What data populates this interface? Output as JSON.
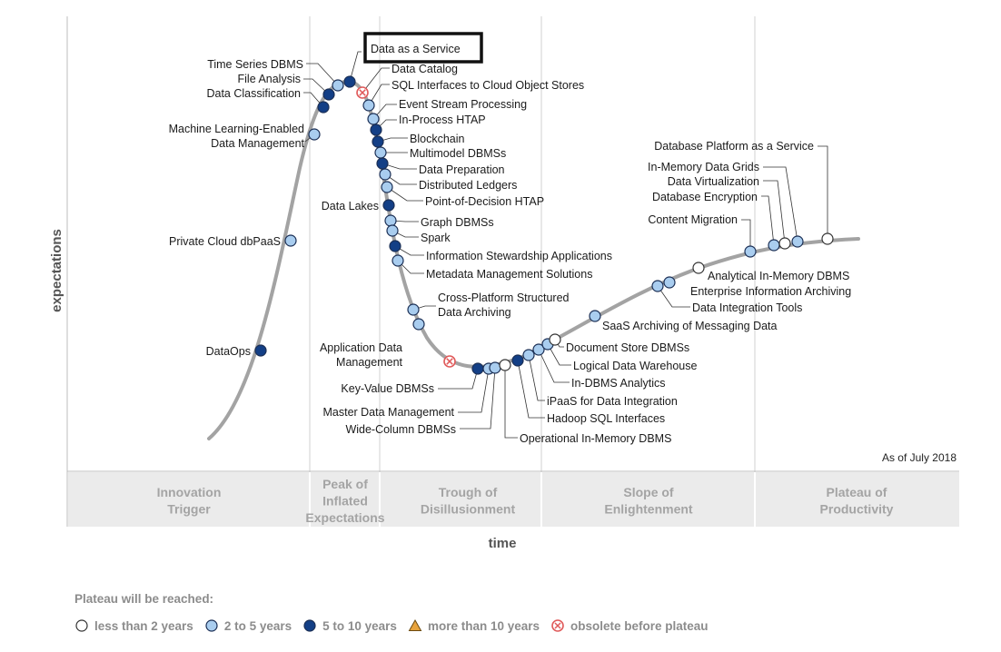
{
  "chart": {
    "x_axis_label": "time",
    "y_axis_label": "expectations",
    "as_of": "As of July 2018",
    "highlight": "Data as a Service",
    "phases": [
      {
        "id": "innovation-trigger",
        "lines": [
          "Innovation",
          "Trigger"
        ]
      },
      {
        "id": "peak",
        "lines": [
          "Peak of",
          "Inflated",
          "Expectations"
        ]
      },
      {
        "id": "trough",
        "lines": [
          "Trough of",
          "Disillusionment"
        ]
      },
      {
        "id": "slope",
        "lines": [
          "Slope of",
          "Enlightenment"
        ]
      },
      {
        "id": "plateau",
        "lines": [
          "Plateau of",
          "Productivity"
        ]
      }
    ]
  },
  "technologies": [
    {
      "name": "DataOps",
      "category": "5-10"
    },
    {
      "name": "Private Cloud dbPaaS",
      "category": "2-5"
    },
    {
      "name": "Machine Learning-Enabled Data Management",
      "category": "2-5"
    },
    {
      "name": "Data Classification",
      "category": "5-10"
    },
    {
      "name": "File Analysis",
      "category": "5-10"
    },
    {
      "name": "Time Series DBMS",
      "category": "2-5"
    },
    {
      "name": "Data as a Service",
      "category": "5-10"
    },
    {
      "name": "Data Catalog",
      "category": "obsolete"
    },
    {
      "name": "SQL Interfaces to Cloud Object Stores",
      "category": "2-5"
    },
    {
      "name": "Event Stream Processing",
      "category": "2-5"
    },
    {
      "name": "In-Process HTAP",
      "category": "5-10"
    },
    {
      "name": "Blockchain",
      "category": "5-10"
    },
    {
      "name": "Multimodel DBMSs",
      "category": "2-5"
    },
    {
      "name": "Data Preparation",
      "category": "5-10"
    },
    {
      "name": "Distributed Ledgers",
      "category": "2-5"
    },
    {
      "name": "Point-of-Decision HTAP",
      "category": "2-5"
    },
    {
      "name": "Data Lakes",
      "category": "5-10"
    },
    {
      "name": "Graph DBMSs",
      "category": "2-5"
    },
    {
      "name": "Spark",
      "category": "2-5"
    },
    {
      "name": "Information Stewardship Applications",
      "category": "5-10"
    },
    {
      "name": "Metadata Management Solutions",
      "category": "2-5"
    },
    {
      "name": "Cross-Platform Structured Data Archiving",
      "category": "2-5"
    },
    {
      "name": "Application Data Management",
      "category": "obsolete"
    },
    {
      "name": "Key-Value DBMSs",
      "category": "5-10"
    },
    {
      "name": "Master Data Management",
      "category": "2-5"
    },
    {
      "name": "Wide-Column DBMSs",
      "category": "2-5"
    },
    {
      "name": "Operational In-Memory DBMS",
      "category": "lt2"
    },
    {
      "name": "Hadoop SQL Interfaces",
      "category": "5-10"
    },
    {
      "name": "iPaaS for Data Integration",
      "category": "2-5"
    },
    {
      "name": "In-DBMS Analytics",
      "category": "2-5"
    },
    {
      "name": "Logical Data Warehouse",
      "category": "2-5"
    },
    {
      "name": "Document Store DBMSs",
      "category": "lt2"
    },
    {
      "name": "SaaS Archiving of Messaging Data",
      "category": "2-5"
    },
    {
      "name": "Data Integration Tools",
      "category": "2-5"
    },
    {
      "name": "Enterprise Information Archiving",
      "category": "2-5"
    },
    {
      "name": "Analytical In-Memory DBMS",
      "category": "lt2"
    },
    {
      "name": "Content Migration",
      "category": "2-5"
    },
    {
      "name": "Database Encryption",
      "category": "2-5"
    },
    {
      "name": "Data Virtualization",
      "category": "lt2"
    },
    {
      "name": "In-Memory Data Grids",
      "category": "2-5"
    },
    {
      "name": "Database Platform as a Service",
      "category": "lt2"
    }
  ],
  "legend": {
    "title": "Plateau will be reached:",
    "items": [
      {
        "key": "lt2",
        "label": "less than 2 years",
        "color": "#ffffff"
      },
      {
        "key": "2-5",
        "label": "2 to 5 years",
        "color": "#a9cdef"
      },
      {
        "key": "5-10",
        "label": "5 to 10 years",
        "color": "#133f86"
      },
      {
        "key": "gt10",
        "label": "more than 10 years",
        "color": "#e8a33c"
      },
      {
        "key": "obsolete",
        "label": "obsolete before plateau",
        "color": "#e05a5a"
      }
    ]
  },
  "colors": {
    "curve": "#a3a3a3",
    "phase_band": "#ebebeb",
    "divider": "#d0d0d0",
    "marker_stroke": "#1b2f55"
  }
}
